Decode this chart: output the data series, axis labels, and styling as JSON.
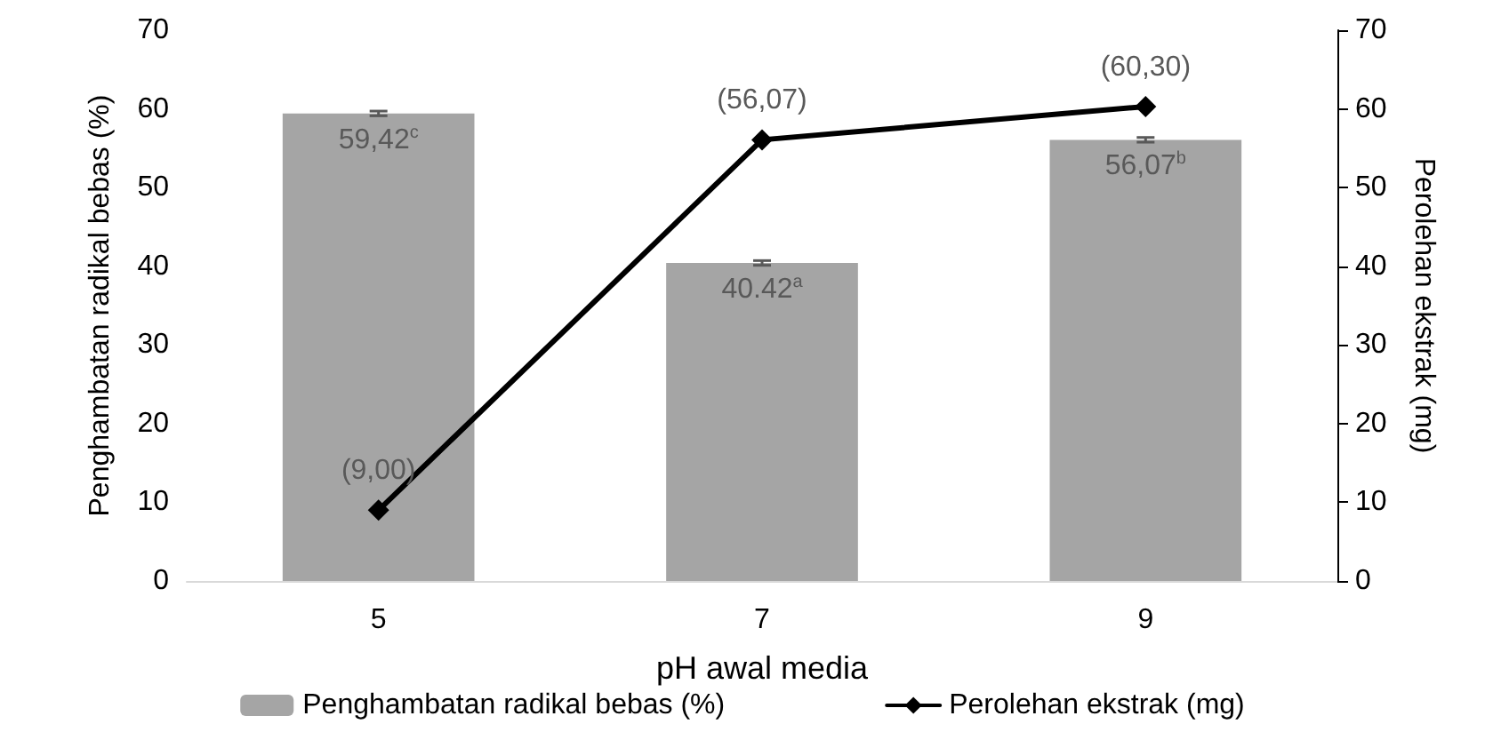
{
  "chart_data": {
    "type": "bar",
    "xlabel": "pH awal media",
    "ylabel": "Penghambatan radikal bebas (%)",
    "y2label": "Perolehan ekstrak (mg)",
    "categories": [
      "5",
      "7",
      "9"
    ],
    "series": [
      {
        "name": "Penghambatan radikal bebas (%)",
        "color": "#a5a5a5",
        "values": [
          59.42,
          40.42,
          56.07
        ],
        "errors": [
          0.3,
          0.3,
          0.3
        ],
        "value_labels": [
          "59,42$^{c}$",
          "40.42$^{a}$",
          "56,07$^{b}$"
        ]
      },
      {
        "name": "Perolehan ekstrak (mg)",
        "type": "line",
        "axis": "y2",
        "color": "#000000",
        "marker": "diamond",
        "values": [
          9.0,
          56.07,
          60.3
        ],
        "value_labels": [
          "(9,00)",
          "(56,07)",
          "(60,30)"
        ]
      }
    ],
    "ylim": [
      0,
      70
    ],
    "yticks": [
      0,
      10,
      20,
      30,
      40,
      50,
      60,
      70
    ],
    "y2lim": [
      0,
      70
    ],
    "y2ticks": [
      0,
      10,
      20,
      30,
      40,
      50,
      60,
      70
    ],
    "grid": false,
    "legend": "bottom"
  }
}
